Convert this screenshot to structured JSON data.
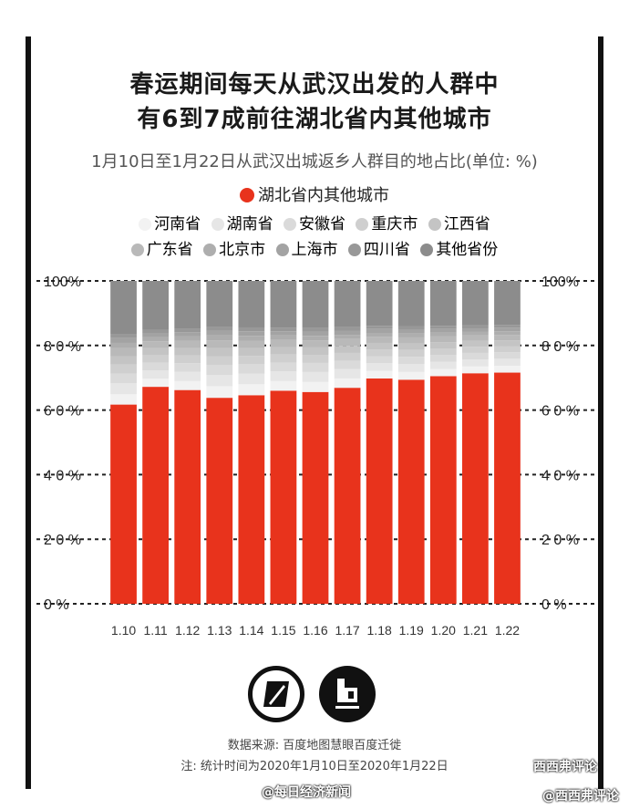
{
  "title_line1": "春运期间每天从武汉出发的人群中",
  "title_line2": "有6到7成前往湖北省内其他城市",
  "subtitle": "1月10日至1月22日从武汉出城返乡人群目的地占比(单位: %)",
  "legend_main": {
    "label": "湖北省内其他城市",
    "color": "#e8331c"
  },
  "legend_row1": [
    {
      "label": "河南省",
      "color": "#f2f2f2"
    },
    {
      "label": "湖南省",
      "color": "#e6e6e6"
    },
    {
      "label": "安徽省",
      "color": "#dadada"
    },
    {
      "label": "重庆市",
      "color": "#cfcfcf"
    },
    {
      "label": "江西省",
      "color": "#c4c4c4"
    }
  ],
  "legend_row2": [
    {
      "label": "广东省",
      "color": "#b9b9b9"
    },
    {
      "label": "北京市",
      "color": "#aeaeae"
    },
    {
      "label": "上海市",
      "color": "#a3a3a3"
    },
    {
      "label": "四川省",
      "color": "#989898"
    },
    {
      "label": "其他省份",
      "color": "#8c8c8c"
    }
  ],
  "source": "数据来源: 百度地图慧眼百度迁徙",
  "note": "注: 统计时间为2020年1月10日至2020年1月22日",
  "watermark1": "@每日经济新闻",
  "watermark2": "西西弗评论",
  "watermark3": "@西西弗评论",
  "chart_data": {
    "type": "bar",
    "stacked": true,
    "categories": [
      "1.10",
      "1.11",
      "1.12",
      "1.13",
      "1.14",
      "1.15",
      "1.16",
      "1.17",
      "1.18",
      "1.19",
      "1.20",
      "1.21",
      "1.22"
    ],
    "y_ticks": [
      "0 %",
      "2 0 %",
      "4 0 %",
      "6 0 %",
      "8 0 %",
      "100%"
    ],
    "ylim": [
      0,
      100
    ],
    "series": [
      {
        "name": "湖北省内其他城市",
        "color": "#e8331c",
        "values": [
          61.7,
          67.2,
          66.2,
          63.8,
          64.6,
          66.0,
          65.6,
          66.9,
          69.8,
          69.4,
          70.5,
          71.4,
          71.6
        ]
      },
      {
        "name": "河南省",
        "color": "#f2f2f2",
        "values": [
          3.2,
          2.5,
          2.8,
          3.6,
          3.4,
          3.0,
          3.1,
          2.9,
          2.3,
          2.4,
          2.2,
          2.1,
          2.1
        ]
      },
      {
        "name": "湖南省",
        "color": "#e6e6e6",
        "values": [
          3.4,
          2.6,
          2.9,
          3.5,
          3.3,
          3.0,
          3.1,
          2.9,
          2.4,
          2.5,
          2.3,
          2.2,
          2.2
        ]
      },
      {
        "name": "安徽省",
        "color": "#dadada",
        "values": [
          3.0,
          2.4,
          2.6,
          3.1,
          2.9,
          2.7,
          2.8,
          2.6,
          2.2,
          2.2,
          2.1,
          2.0,
          2.0
        ]
      },
      {
        "name": "重庆市",
        "color": "#cfcfcf",
        "values": [
          2.8,
          2.3,
          2.4,
          2.7,
          2.6,
          2.5,
          2.5,
          2.4,
          2.1,
          2.1,
          2.0,
          1.9,
          1.9
        ]
      },
      {
        "name": "江西省",
        "color": "#c4c4c4",
        "values": [
          2.6,
          2.2,
          2.3,
          2.5,
          2.4,
          2.3,
          2.3,
          2.2,
          2.0,
          2.0,
          1.9,
          1.8,
          1.8
        ]
      },
      {
        "name": "广东省",
        "color": "#b9b9b9",
        "values": [
          2.5,
          2.1,
          2.2,
          2.4,
          2.3,
          2.2,
          2.2,
          2.1,
          1.9,
          1.9,
          1.8,
          1.7,
          1.7
        ]
      },
      {
        "name": "北京市",
        "color": "#aeaeae",
        "values": [
          1.6,
          1.3,
          1.4,
          1.5,
          1.5,
          1.4,
          1.4,
          1.3,
          1.2,
          1.2,
          1.2,
          1.1,
          1.1
        ]
      },
      {
        "name": "上海市",
        "color": "#a3a3a3",
        "values": [
          1.5,
          1.3,
          1.3,
          1.4,
          1.4,
          1.3,
          1.3,
          1.3,
          1.2,
          1.2,
          1.1,
          1.1,
          1.1
        ]
      },
      {
        "name": "四川省",
        "color": "#989898",
        "values": [
          1.2,
          1.0,
          1.1,
          1.2,
          1.2,
          1.1,
          1.1,
          1.1,
          1.0,
          1.0,
          1.0,
          0.9,
          0.9
        ]
      },
      {
        "name": "其他省份",
        "color": "#8c8c8c",
        "values": [
          16.5,
          15.1,
          14.8,
          14.3,
          14.4,
          14.5,
          14.6,
          14.3,
          13.9,
          14.1,
          13.9,
          13.8,
          13.6
        ]
      }
    ]
  }
}
